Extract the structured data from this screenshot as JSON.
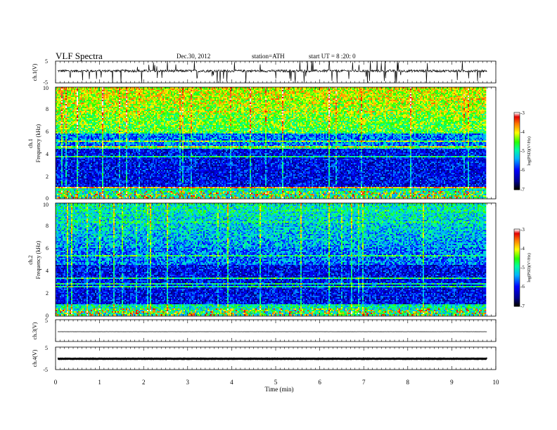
{
  "header": {
    "title": "VLF  Spectra",
    "date": "Dec.30, 2012",
    "station": "station=ATH",
    "start": "start  UT  =   8  :20: 0"
  },
  "chart_data": [
    {
      "type": "line",
      "name": "ch1-waveform",
      "ylabel": "ch.1(V)",
      "ylim": [
        -5,
        5
      ],
      "yticks": [
        "5",
        "-5"
      ],
      "baseline_value": 0.5,
      "color": "#000000"
    },
    {
      "type": "heatmap",
      "name": "ch1-spectrogram",
      "ylabel_line1": "ch.1",
      "ylabel_line2": "Frequency  (kHz)",
      "ylim": [
        0,
        10
      ],
      "yticks": [
        "0",
        "2",
        "4",
        "6",
        "8",
        "10"
      ],
      "xlim": [
        0,
        9.8
      ],
      "colorbar": {
        "ticks": [
          "-3",
          "-4",
          "-5",
          "-6",
          "-7"
        ],
        "label": "log(PSD)(V²/Hz)",
        "range": [
          -7,
          -3
        ]
      },
      "upper_band_level": -4.3
    },
    {
      "type": "heatmap",
      "name": "ch2-spectrogram",
      "ylabel_line1": "ch.2",
      "ylabel_line2": "Frequency  (kHz)",
      "ylim": [
        0,
        10
      ],
      "yticks": [
        "0",
        "2",
        "4",
        "6",
        "8",
        "10"
      ],
      "xlim": [
        0,
        9.8
      ],
      "colorbar": {
        "ticks": [
          "-3",
          "-4",
          "-5",
          "-6",
          "-7"
        ],
        "label": "log(PSD)(V²/Hz)",
        "range": [
          -7,
          -3
        ]
      },
      "upper_band_level": -5.2
    },
    {
      "type": "line",
      "name": "ch3-waveform",
      "ylabel": "ch.3(V)",
      "ylim": [
        -5,
        5
      ],
      "yticks": [
        "5"
      ],
      "baseline_value": -0.5,
      "color": "#000000"
    },
    {
      "type": "line",
      "name": "ch4-waveform",
      "ylabel": "ch.4(V)",
      "ylim": [
        -5,
        5
      ],
      "yticks": [
        "5",
        "-5"
      ],
      "baseline_value": -0.2,
      "color": "#000000"
    }
  ],
  "xaxis": {
    "label": "Time  (min)",
    "range": [
      0,
      10
    ],
    "ticks": [
      "0",
      "1",
      "2",
      "3",
      "4",
      "5",
      "6",
      "7",
      "8",
      "9",
      "10"
    ]
  }
}
